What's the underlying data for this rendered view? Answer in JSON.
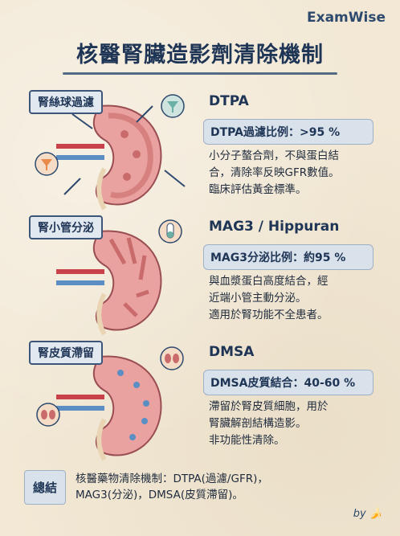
{
  "brand": "ExamWise",
  "title": "核醫腎臟造影劑清除機制",
  "sections": [
    {
      "tag": "腎絲球過濾",
      "drug": "DTPA",
      "stat": "DTPA過濾比例：>95 %",
      "desc": [
        "小分子螯合劑，不與蛋白結",
        "合，清除率反映GFR數值。",
        "臨床評估黃金標準。"
      ],
      "icons": [
        "funnel-icon"
      ]
    },
    {
      "tag": "腎小管分泌",
      "drug": "MAG3 / Hippuran",
      "stat": "MAG3分泌比例：約95 %",
      "desc": [
        "與血漿蛋白高度結合，經",
        "近端小管主動分泌。",
        "適用於腎功能不全患者。"
      ],
      "icons": [
        "test-tube-icon"
      ]
    },
    {
      "tag": "腎皮質滯留",
      "drug": "DMSA",
      "stat": "DMSA皮質結合：40-60 %",
      "desc": [
        "滯留於腎皮質細胞，用於",
        "腎臟解剖結構造影。",
        "非功能性清除。"
      ],
      "icons": [
        "small-kidney-icon"
      ]
    }
  ],
  "summary": {
    "tag": "總結",
    "lines": [
      "核醫藥物清除機制：DTPA(過濾/GFR)，",
      "MAG3(分泌)，DMSA(皮質滯留)。"
    ]
  },
  "footer": "by 🍌",
  "colors": {
    "accent": "#1e3556",
    "kidney": "#e9a2a0",
    "cortex": "#c96a6b",
    "artery": "#c9414a",
    "vein": "#5b8ec2",
    "funnel": "#6ab0a4",
    "funnel_orange": "#e9894a"
  }
}
